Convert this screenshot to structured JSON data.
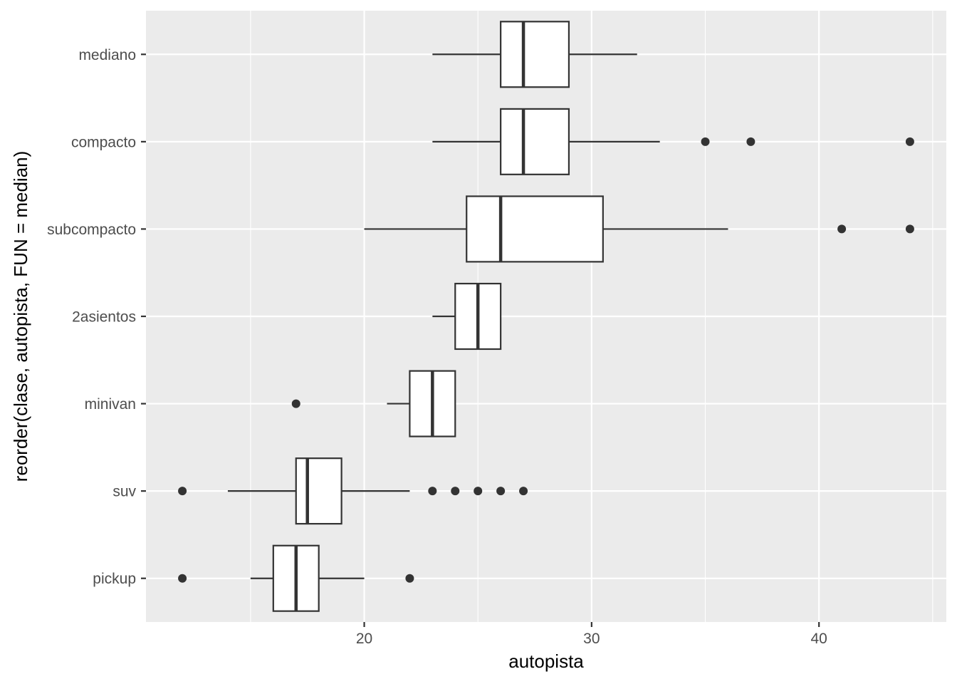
{
  "chart_data": {
    "type": "boxplot",
    "orientation": "horizontal",
    "title": "",
    "xlabel": "autopista",
    "ylabel": "reorder(clase, autopista, FUN = median)",
    "xlim": [
      10.4,
      45.6
    ],
    "x_ticks": [
      20,
      30,
      40
    ],
    "x_tick_labels": [
      "20",
      "30",
      "40"
    ],
    "grid": true,
    "legend": "none",
    "categories": [
      "mediano",
      "compacto",
      "subcompacto",
      "2asientos",
      "minivan",
      "suv",
      "pickup"
    ],
    "boxes": [
      {
        "category": "mediano",
        "whisker_low": 23,
        "q1": 26,
        "median": 27,
        "q3": 29,
        "whisker_high": 32,
        "outliers": []
      },
      {
        "category": "compacto",
        "whisker_low": 23,
        "q1": 26,
        "median": 27,
        "q3": 29,
        "whisker_high": 33,
        "outliers": [
          35,
          37,
          44
        ]
      },
      {
        "category": "subcompacto",
        "whisker_low": 20,
        "q1": 24.5,
        "median": 26,
        "q3": 30.5,
        "whisker_high": 36,
        "outliers": [
          41,
          44
        ]
      },
      {
        "category": "2asientos",
        "whisker_low": 23,
        "q1": 24,
        "median": 25,
        "q3": 26,
        "whisker_high": 26,
        "outliers": []
      },
      {
        "category": "minivan",
        "whisker_low": 21,
        "q1": 22,
        "median": 23,
        "q3": 24,
        "whisker_high": 24,
        "outliers": [
          17
        ]
      },
      {
        "category": "suv",
        "whisker_low": 14,
        "q1": 17,
        "median": 17.5,
        "q3": 19,
        "whisker_high": 22,
        "outliers": [
          12,
          23,
          24,
          25,
          26,
          27
        ]
      },
      {
        "category": "pickup",
        "whisker_low": 15,
        "q1": 16,
        "median": 17,
        "q3": 18,
        "whisker_high": 20,
        "outliers": [
          12,
          22
        ]
      }
    ],
    "colors": {
      "panel_background": "#ebebeb",
      "grid_major": "#ffffff",
      "box_fill": "#ffffff",
      "box_line": "#333333",
      "outlier": "#333333",
      "tick_label": "#4d4d4d"
    }
  }
}
